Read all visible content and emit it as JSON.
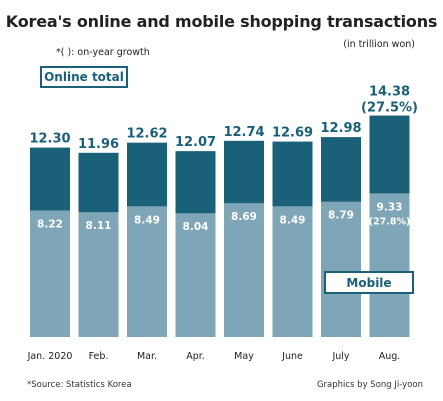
{
  "title": "Korea's online and mobile shopping transactions",
  "note": "*( ): on-year growth",
  "unit": "(in trillion won)",
  "legend_online": "Online total",
  "legend_mobile": "Mobile",
  "source": "*Source: Statistics Korea",
  "credit": "Graphics by Song Ji-yoon",
  "colors": {
    "online": "#1a6078",
    "mobile": "#7ea6b6",
    "label_dark": "#1a6078",
    "label_light": "#ffffff"
  },
  "chart_data": {
    "type": "bar",
    "stacked": true,
    "categories": [
      "Jan. 2020",
      "Feb.",
      "Mar.",
      "Apr.",
      "May",
      "June",
      "July",
      "Aug."
    ],
    "series": [
      {
        "name": "Online total",
        "values": [
          12.3,
          11.96,
          12.62,
          12.07,
          12.74,
          12.69,
          12.98,
          14.38
        ],
        "labels": [
          "12.30",
          "11.96",
          "12.62",
          "12.07",
          "12.74",
          "12.69",
          "12.98",
          "14.38"
        ]
      },
      {
        "name": "Mobile",
        "values": [
          8.22,
          8.11,
          8.49,
          8.04,
          8.69,
          8.49,
          8.79,
          9.33
        ],
        "labels": [
          "8.22",
          "8.11",
          "8.49",
          "8.04",
          "8.69",
          "8.49",
          "8.79",
          "9.33"
        ]
      }
    ],
    "growth_labels": {
      "online": [
        "",
        "",
        "",
        "",
        "",
        "",
        "",
        "(27.5%)"
      ],
      "mobile": [
        "",
        "",
        "",
        "",
        "",
        "",
        "",
        "(27.8%)"
      ]
    }
  }
}
